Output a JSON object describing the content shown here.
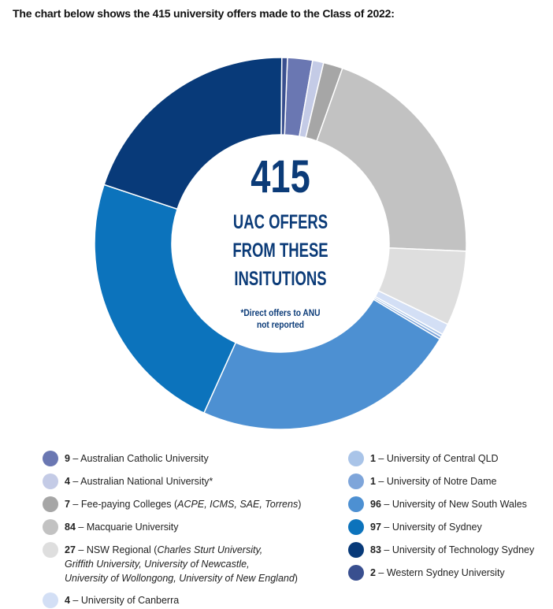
{
  "header": {
    "text": "The chart below shows the 415 university offers made to the Class of 2022:"
  },
  "center": {
    "total": "415",
    "line1": "UAC OFFERS",
    "line2": "FROM THESE",
    "line3": "INSITUTIONS",
    "note1": "*Direct offers to ANU",
    "note2": "not reported"
  },
  "chart_data": {
    "type": "pie",
    "total": 415,
    "series": [
      {
        "name": "Australian Catholic University",
        "value": 9,
        "color": "#6a77b2"
      },
      {
        "name": "Australian National University*",
        "value": 4,
        "color": "#c4cbe6"
      },
      {
        "name": "Fee-paying Colleges",
        "value": 7,
        "color": "#a6a6a6"
      },
      {
        "name": "Macquarie University",
        "value": 84,
        "color": "#c2c2c2"
      },
      {
        "name": "NSW Regional",
        "value": 27,
        "color": "#dedede"
      },
      {
        "name": "University of Canberra",
        "value": 4,
        "color": "#d3dff5"
      },
      {
        "name": "University of Central QLD",
        "value": 1,
        "color": "#a9c4e8"
      },
      {
        "name": "University of Notre Dame",
        "value": 1,
        "color": "#7ea5da"
      },
      {
        "name": "University of New South Wales",
        "value": 96,
        "color": "#4d90d2"
      },
      {
        "name": "University of Sydney",
        "value": 97,
        "color": "#0c73bc"
      },
      {
        "name": "University of Technology Sydney",
        "value": 83,
        "color": "#083a79"
      },
      {
        "name": "Western Sydney University",
        "value": 2,
        "color": "#394f8f"
      }
    ]
  },
  "legend": {
    "items": [
      {
        "count": "9",
        "dash": " – ",
        "label": "Australian Catholic University"
      },
      {
        "count": "4",
        "dash": " – ",
        "label": "Australian National University*"
      },
      {
        "count": "7",
        "dash": " – ",
        "label": "Fee-paying Colleges (",
        "detail": "ACPE, ICMS, SAE, Torrens",
        "close": ")"
      },
      {
        "count": "84",
        "dash": " – ",
        "label": "Macquarie University"
      },
      {
        "count": "27",
        "dash": " – ",
        "label": "NSW Regional (",
        "detail": "Charles Sturt University,",
        "detail2": "Griffith University, University of Newcastle,",
        "detail3": "University of Wollongong, University of New England",
        "close": ")"
      },
      {
        "count": "4",
        "dash": " – ",
        "label": "University of Canberra"
      },
      {
        "count": "1",
        "dash": " – ",
        "label": "University of Central QLD"
      },
      {
        "count": "1",
        "dash": " – ",
        "label": "University of Notre Dame"
      },
      {
        "count": "96",
        "dash": " – ",
        "label": "University of New South Wales"
      },
      {
        "count": "97",
        "dash": " – ",
        "label": "University of Sydney"
      },
      {
        "count": "83",
        "dash": " – ",
        "label": "University of Technology Sydney"
      },
      {
        "count": "2",
        "dash": " – ",
        "label": "Western Sydney University"
      }
    ]
  }
}
